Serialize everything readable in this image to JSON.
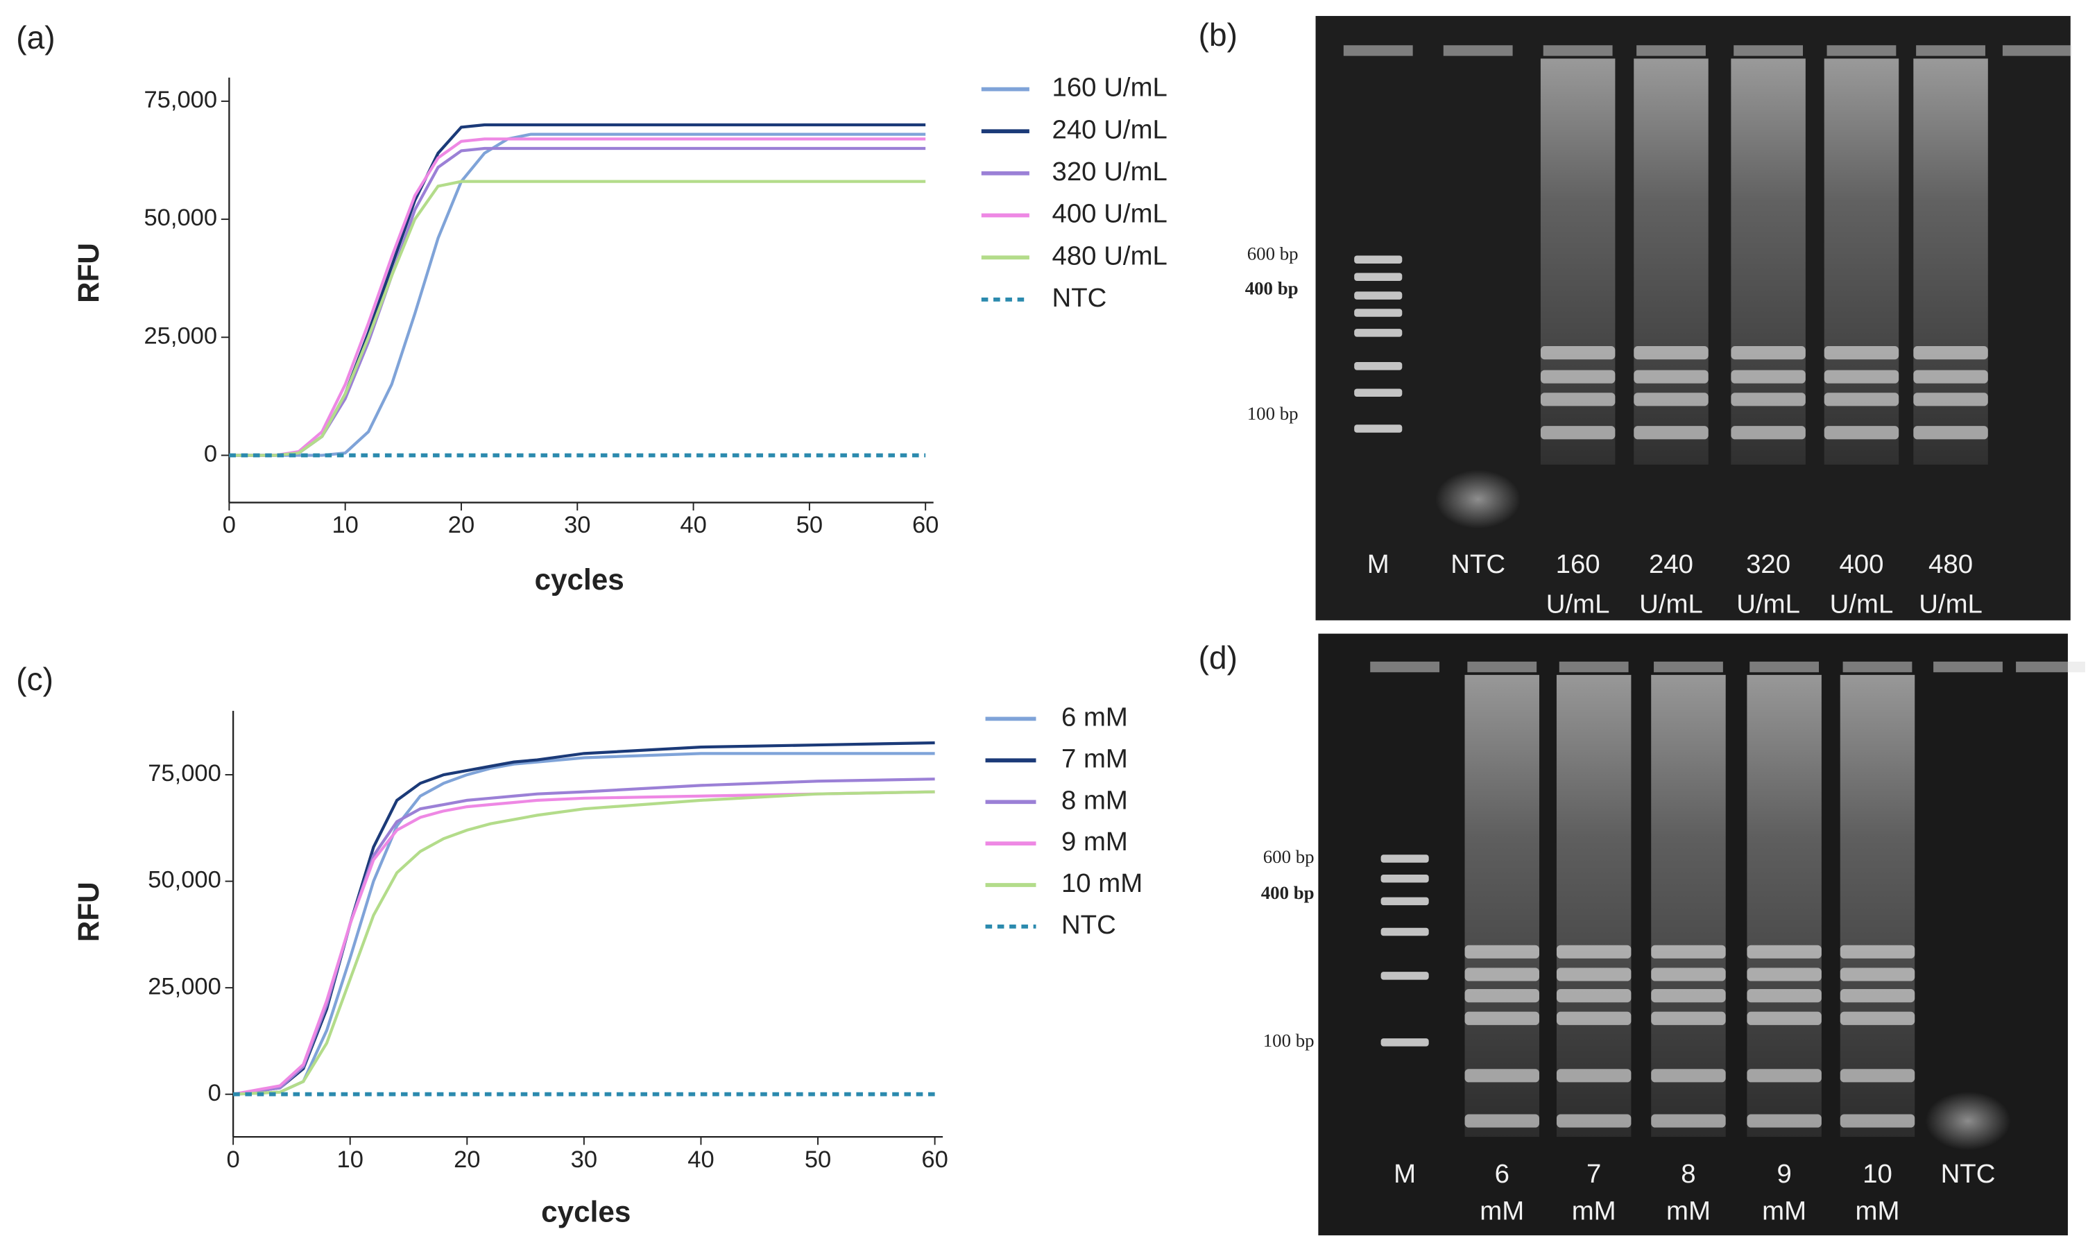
{
  "panel_labels": [
    "(a)",
    "(b)",
    "(c)",
    "(d)"
  ],
  "chart_data": [
    {
      "type": "line",
      "xlabel": "cycles",
      "ylabel": "RFU",
      "x": [
        0,
        4,
        6,
        8,
        10,
        12,
        14,
        16,
        18,
        20,
        22,
        24,
        26,
        30,
        40,
        50,
        60
      ],
      "xlim": [
        0,
        60
      ],
      "xticks": [
        0,
        10,
        20,
        30,
        40,
        50,
        60
      ],
      "ylim": [
        -10000,
        80000
      ],
      "yticks": [
        0,
        {
          "value": 25000,
          "label": "25,000"
        },
        {
          "value": 50000,
          "label": "50,000"
        },
        {
          "value": 75000,
          "label": "75,000"
        }
      ],
      "series": [
        {
          "name": "160 U/mL",
          "color": "#7fa3d8",
          "dash": false,
          "values": [
            0,
            0,
            0,
            0,
            500,
            5000,
            15000,
            30000,
            46000,
            58000,
            64000,
            67000,
            68000,
            68000,
            68000,
            68000,
            68000
          ]
        },
        {
          "name": "240 U/mL",
          "color": "#1b3a78",
          "dash": false,
          "values": [
            0,
            0,
            500,
            4000,
            13000,
            26000,
            40000,
            54000,
            64000,
            69500,
            70000,
            70000,
            70000,
            70000,
            70000,
            70000,
            70000
          ]
        },
        {
          "name": "320 U/mL",
          "color": "#9b80d6",
          "dash": false,
          "values": [
            0,
            0,
            500,
            4000,
            12000,
            24000,
            38000,
            52000,
            61000,
            64500,
            65000,
            65000,
            65000,
            65000,
            65000,
            65000,
            65000
          ]
        },
        {
          "name": "400 U/mL",
          "color": "#ee88e4",
          "dash": false,
          "values": [
            0,
            0,
            800,
            5000,
            15000,
            28000,
            42000,
            55000,
            63000,
            66500,
            67000,
            67000,
            67000,
            67000,
            67000,
            67000,
            67000
          ]
        },
        {
          "name": "480 U/mL",
          "color": "#b3dc8a",
          "dash": false,
          "values": [
            0,
            0,
            500,
            4000,
            13000,
            25000,
            38000,
            50000,
            57000,
            58000,
            58000,
            58000,
            58000,
            58000,
            58000,
            58000,
            58000
          ]
        },
        {
          "name": "NTC",
          "color": "#2b8aae",
          "dash": true,
          "values": [
            0,
            0,
            0,
            0,
            0,
            0,
            0,
            0,
            0,
            0,
            0,
            0,
            0,
            0,
            0,
            0,
            0
          ]
        }
      ]
    },
    {
      "type": "line",
      "xlabel": "cycles",
      "ylabel": "RFU",
      "x": [
        0,
        4,
        6,
        8,
        10,
        12,
        14,
        16,
        18,
        20,
        22,
        24,
        26,
        30,
        40,
        50,
        60
      ],
      "xlim": [
        0,
        60
      ],
      "xticks": [
        0,
        10,
        20,
        30,
        40,
        50,
        60
      ],
      "ylim": [
        -10000,
        90000
      ],
      "yticks": [
        0,
        {
          "value": 25000,
          "label": "25,000"
        },
        {
          "value": 50000,
          "label": "50,000"
        },
        {
          "value": 75000,
          "label": "75,000"
        }
      ],
      "series": [
        {
          "name": "6 mM",
          "color": "#7fa3d8",
          "dash": false,
          "values": [
            0,
            500,
            3000,
            15000,
            32000,
            50000,
            63000,
            70000,
            73000,
            75000,
            76500,
            77500,
            78000,
            79000,
            80000,
            80000,
            80000
          ]
        },
        {
          "name": "7 mM",
          "color": "#1b3a78",
          "dash": false,
          "values": [
            0,
            1500,
            6000,
            20000,
            40000,
            58000,
            69000,
            73000,
            75000,
            76000,
            77000,
            78000,
            78500,
            80000,
            81500,
            82000,
            82500
          ]
        },
        {
          "name": "8 mM",
          "color": "#9b80d6",
          "dash": false,
          "values": [
            0,
            1500,
            6500,
            21000,
            40000,
            56000,
            64000,
            67000,
            68000,
            69000,
            69500,
            70000,
            70500,
            71000,
            72500,
            73500,
            74000
          ]
        },
        {
          "name": "9 mM",
          "color": "#ee88e4",
          "dash": false,
          "values": [
            0,
            2000,
            7000,
            22000,
            40000,
            55000,
            62000,
            65000,
            66500,
            67500,
            68000,
            68500,
            69000,
            69500,
            70000,
            70500,
            71000
          ]
        },
        {
          "name": "10 mM",
          "color": "#b3dc8a",
          "dash": false,
          "values": [
            0,
            500,
            3000,
            12000,
            27000,
            42000,
            52000,
            57000,
            60000,
            62000,
            63500,
            64500,
            65500,
            67000,
            69000,
            70500,
            71000
          ]
        },
        {
          "name": "NTC",
          "color": "#2b8aae",
          "dash": true,
          "values": [
            0,
            0,
            0,
            0,
            0,
            0,
            0,
            0,
            0,
            0,
            0,
            0,
            0,
            0,
            0,
            0,
            0
          ]
        }
      ]
    }
  ],
  "gels": [
    {
      "markers": [
        "600 bp",
        "400 bp",
        "100 bp"
      ],
      "lanes": [
        [
          "M"
        ],
        [
          "NTC"
        ],
        [
          "160",
          "U/mL"
        ],
        [
          "240",
          "U/mL"
        ],
        [
          "320",
          "U/mL"
        ],
        [
          "400",
          "U/mL"
        ],
        [
          "480",
          "U/mL"
        ]
      ]
    },
    {
      "markers": [
        "600 bp",
        "400 bp",
        "100 bp"
      ],
      "lanes": [
        [
          "M"
        ],
        [
          "6",
          "mM"
        ],
        [
          "7",
          "mM"
        ],
        [
          "8",
          "mM"
        ],
        [
          "9",
          "mM"
        ],
        [
          "10",
          "mM"
        ],
        [
          "NTC"
        ]
      ]
    }
  ]
}
